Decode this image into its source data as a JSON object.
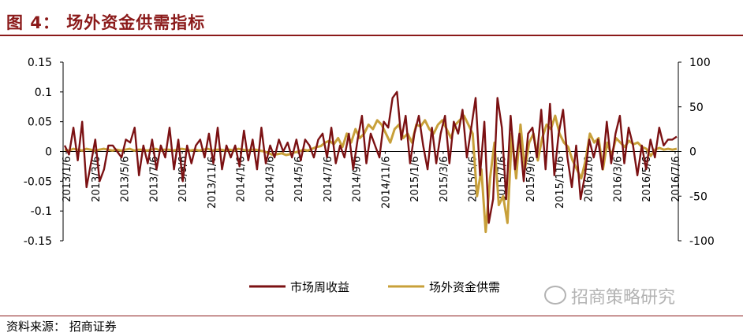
{
  "figure": {
    "title": "图 4：  场外资金供需指标",
    "source": "资料来源：  招商证券",
    "watermark": "招商策略研究"
  },
  "colors": {
    "series_1": "#7b1113",
    "series_2": "#c8a03a",
    "title": "#8b1a1a"
  },
  "chart_data": {
    "type": "line",
    "title": "",
    "xlabel": "",
    "ylabel": "",
    "y2label": "",
    "ylim": [
      -0.15,
      0.15
    ],
    "y2lim": [
      -100,
      100
    ],
    "yticks": [
      "0.15",
      "0.1",
      "0.05",
      "0",
      "-0.05",
      "-0.1",
      "-0.15"
    ],
    "y2ticks": [
      "100",
      "50",
      "0",
      "-50",
      "-100"
    ],
    "xticks": [
      "2013/1/6",
      "2013/3/6",
      "2013/5/6",
      "2013/7/6",
      "2013/9/6",
      "2013/11/6",
      "2014/1/6",
      "2014/3/6",
      "2014/5/6",
      "2014/7/6",
      "2014/9/6",
      "2014/11/6",
      "2015/1/6",
      "2015/3/6",
      "2015/5/6",
      "2015/7/6",
      "2015/9/6",
      "2015/11/6",
      "2016/1/6",
      "2016/3/6",
      "2016/5/6",
      "2016/7/6"
    ],
    "legend_position": "bottom",
    "grid": false,
    "series": [
      {
        "name": "市场周收益",
        "axis": "left",
        "values": [
          0.01,
          -0.005,
          0.04,
          -0.015,
          0.05,
          -0.06,
          -0.02,
          0.02,
          -0.05,
          -0.03,
          0.01,
          0.01,
          0.0,
          -0.01,
          0.02,
          0.015,
          0.04,
          -0.04,
          0.01,
          -0.02,
          0.02,
          -0.03,
          0.01,
          -0.01,
          0.04,
          -0.03,
          0.02,
          -0.05,
          0.01,
          -0.02,
          0.01,
          0.02,
          -0.01,
          0.03,
          -0.02,
          0.04,
          -0.03,
          0.01,
          -0.01,
          0.01,
          -0.025,
          0.035,
          -0.015,
          0.02,
          -0.03,
          0.04,
          -0.02,
          0.01,
          -0.01,
          0.02,
          0.0,
          0.015,
          -0.01,
          0.02,
          -0.015,
          0.02,
          0.01,
          -0.01,
          0.02,
          0.03,
          -0.01,
          0.04,
          -0.02,
          0.01,
          -0.01,
          0.03,
          -0.03,
          0.02,
          0.06,
          -0.02,
          0.03,
          0.01,
          -0.01,
          0.05,
          0.04,
          0.09,
          0.1,
          0.02,
          0.06,
          -0.02,
          0.03,
          0.06,
          0.01,
          -0.03,
          0.04,
          -0.02,
          0.03,
          0.06,
          -0.02,
          0.05,
          0.03,
          0.07,
          -0.01,
          0.04,
          0.09,
          -0.04,
          0.05,
          -0.12,
          -0.08,
          0.09,
          0.04,
          -0.08,
          0.06,
          -0.03,
          0.03,
          -0.05,
          0.03,
          0.04,
          -0.01,
          0.07,
          -0.03,
          0.08,
          -0.04,
          0.03,
          0.07,
          -0.01,
          -0.06,
          0.01,
          -0.08,
          -0.04,
          0.02,
          -0.01,
          0.02,
          -0.03,
          0.05,
          -0.02,
          0.03,
          0.06,
          -0.02,
          0.04,
          0.01,
          -0.04,
          0.01,
          -0.03,
          0.02,
          -0.01,
          0.04,
          0.01,
          0.02,
          0.02,
          0.025
        ]
      },
      {
        "name": "场外资金供需",
        "axis": "right",
        "values": [
          2,
          1,
          3,
          2,
          1,
          3,
          2,
          1,
          2,
          3,
          2,
          1,
          2,
          1,
          2,
          3,
          1,
          2,
          2,
          1,
          2,
          3,
          1,
          2,
          2,
          1,
          2,
          3,
          2,
          1,
          2,
          1,
          2,
          3,
          1,
          2,
          2,
          1,
          2,
          1,
          3,
          2,
          1,
          2,
          2,
          1,
          0,
          -2,
          -4,
          -3,
          -2,
          -4,
          -3,
          -1,
          0,
          2,
          1,
          3,
          5,
          6,
          10,
          12,
          8,
          15,
          5,
          20,
          10,
          25,
          15,
          20,
          30,
          25,
          35,
          30,
          20,
          10,
          25,
          30,
          15,
          20,
          10,
          30,
          28,
          35,
          25,
          20,
          30,
          35,
          25,
          15,
          30,
          35,
          40,
          30,
          20,
          -50,
          -20,
          -90,
          -30,
          10,
          -60,
          -50,
          -80,
          20,
          -30,
          30,
          -20,
          10,
          20,
          -10,
          15,
          30,
          25,
          40,
          20,
          10,
          5,
          -10,
          -20,
          -30,
          -10,
          20,
          10,
          15,
          -20,
          10,
          -5,
          15,
          10,
          5,
          12,
          8,
          10,
          5,
          3,
          -5,
          2,
          4,
          2,
          3,
          2,
          3
        ]
      }
    ]
  }
}
